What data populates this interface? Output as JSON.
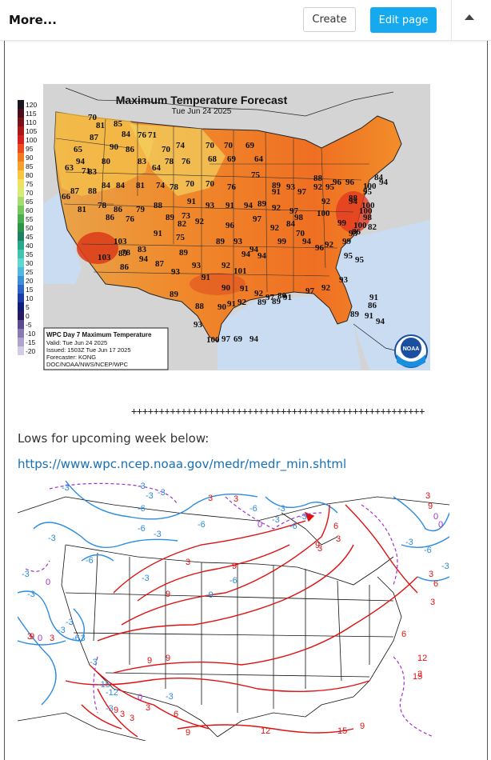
{
  "toolbar": {
    "more_label": "More...",
    "create_label": "Create",
    "edit_label": "Edit page",
    "collapse_icon": "caret-up-icon"
  },
  "forecast_map": {
    "title": "Maximum Temperature Forecast",
    "date": "Tue Jun 24 2025",
    "legend_values": [
      "120",
      "115",
      "110",
      "105",
      "100",
      "95",
      "90",
      "85",
      "80",
      "75",
      "70",
      "65",
      "60",
      "55",
      "50",
      "45",
      "40",
      "35",
      "30",
      "25",
      "20",
      "15",
      "10",
      "5",
      "0",
      "-5",
      "-10",
      "-15",
      "-20"
    ],
    "info_lines": [
      "WPC Day 7 Maximum Temperature",
      "Valid: Tue Jun 24 2025",
      "Issued: 1503Z Tue Jun 17 2025",
      "Forecaster: KONG",
      "DOC/NOAA/NWS/NCEP/WPC"
    ],
    "logo_text": "NOAA",
    "temperatures": [
      "70",
      "81",
      "85",
      "87",
      "84",
      "76",
      "71",
      "90",
      "86",
      "80",
      "70",
      "74",
      "65",
      "94",
      "83",
      "71",
      "78",
      "76",
      "70",
      "70",
      "69",
      "64",
      "63",
      "83",
      "84",
      "84",
      "81",
      "64",
      "68",
      "69",
      "75",
      "66",
      "87",
      "88",
      "74",
      "78",
      "70",
      "70",
      "76",
      "89",
      "91",
      "93",
      "97",
      "92",
      "95",
      "88",
      "96",
      "96",
      "100",
      "84",
      "94",
      "81",
      "78",
      "86",
      "79",
      "88",
      "91",
      "93",
      "91",
      "94",
      "89",
      "92",
      "97",
      "92",
      "94",
      "95",
      "100",
      "98",
      "100",
      "88",
      "82",
      "89",
      "73",
      "86",
      "76",
      "91",
      "82",
      "92",
      "96",
      "97",
      "98",
      "100",
      "99",
      "93",
      "100",
      "103",
      "78",
      "83",
      "75",
      "89",
      "89",
      "93",
      "94",
      "92",
      "84",
      "70",
      "101",
      "103",
      "89",
      "86",
      "87",
      "93",
      "92",
      "94",
      "94",
      "99",
      "94",
      "96",
      "92",
      "99",
      "86",
      "95",
      "95",
      "94",
      "93",
      "91",
      "90",
      "91",
      "92",
      "89",
      "80",
      "97",
      "92",
      "93",
      "89",
      "88",
      "90",
      "91",
      "92",
      "89",
      "97",
      "91",
      "89",
      "91",
      "86",
      "91",
      "94",
      "100",
      "93",
      "97",
      "69",
      "94"
    ]
  },
  "separator": "+++++++++++++++++++++++++++++++++++++++++++++++++++++",
  "lows_text": "Lows for upcoming week below:",
  "lows_link": "https://www.wpc.ncep.noaa.gov/medr/medr_min.shtml",
  "anomaly_map": {
    "labels": [
      "-3",
      "-3",
      "-3",
      "-3",
      "3",
      "3",
      "-6",
      "-6",
      "-6",
      "0",
      "-6",
      "-3",
      "-3",
      "-6",
      "-3",
      "-3",
      "3",
      "3",
      "-3",
      "-6",
      "-3",
      "6",
      "9",
      "3",
      "9",
      "-9",
      "-6",
      "-3",
      "-3",
      "0",
      "-3",
      "-3",
      "-3",
      "9",
      "9",
      "9",
      "9",
      "3",
      "3",
      "0",
      "-6",
      "-3",
      "-15",
      "-12",
      "9",
      "3",
      "3",
      "0",
      "-3",
      "-3",
      "3",
      "6",
      "9",
      "12",
      "15",
      "9",
      "6",
      "12",
      "15",
      "3",
      "6",
      "3",
      "3",
      "9",
      "0",
      "0",
      "-3",
      "-6",
      "3",
      "-3"
    ]
  }
}
